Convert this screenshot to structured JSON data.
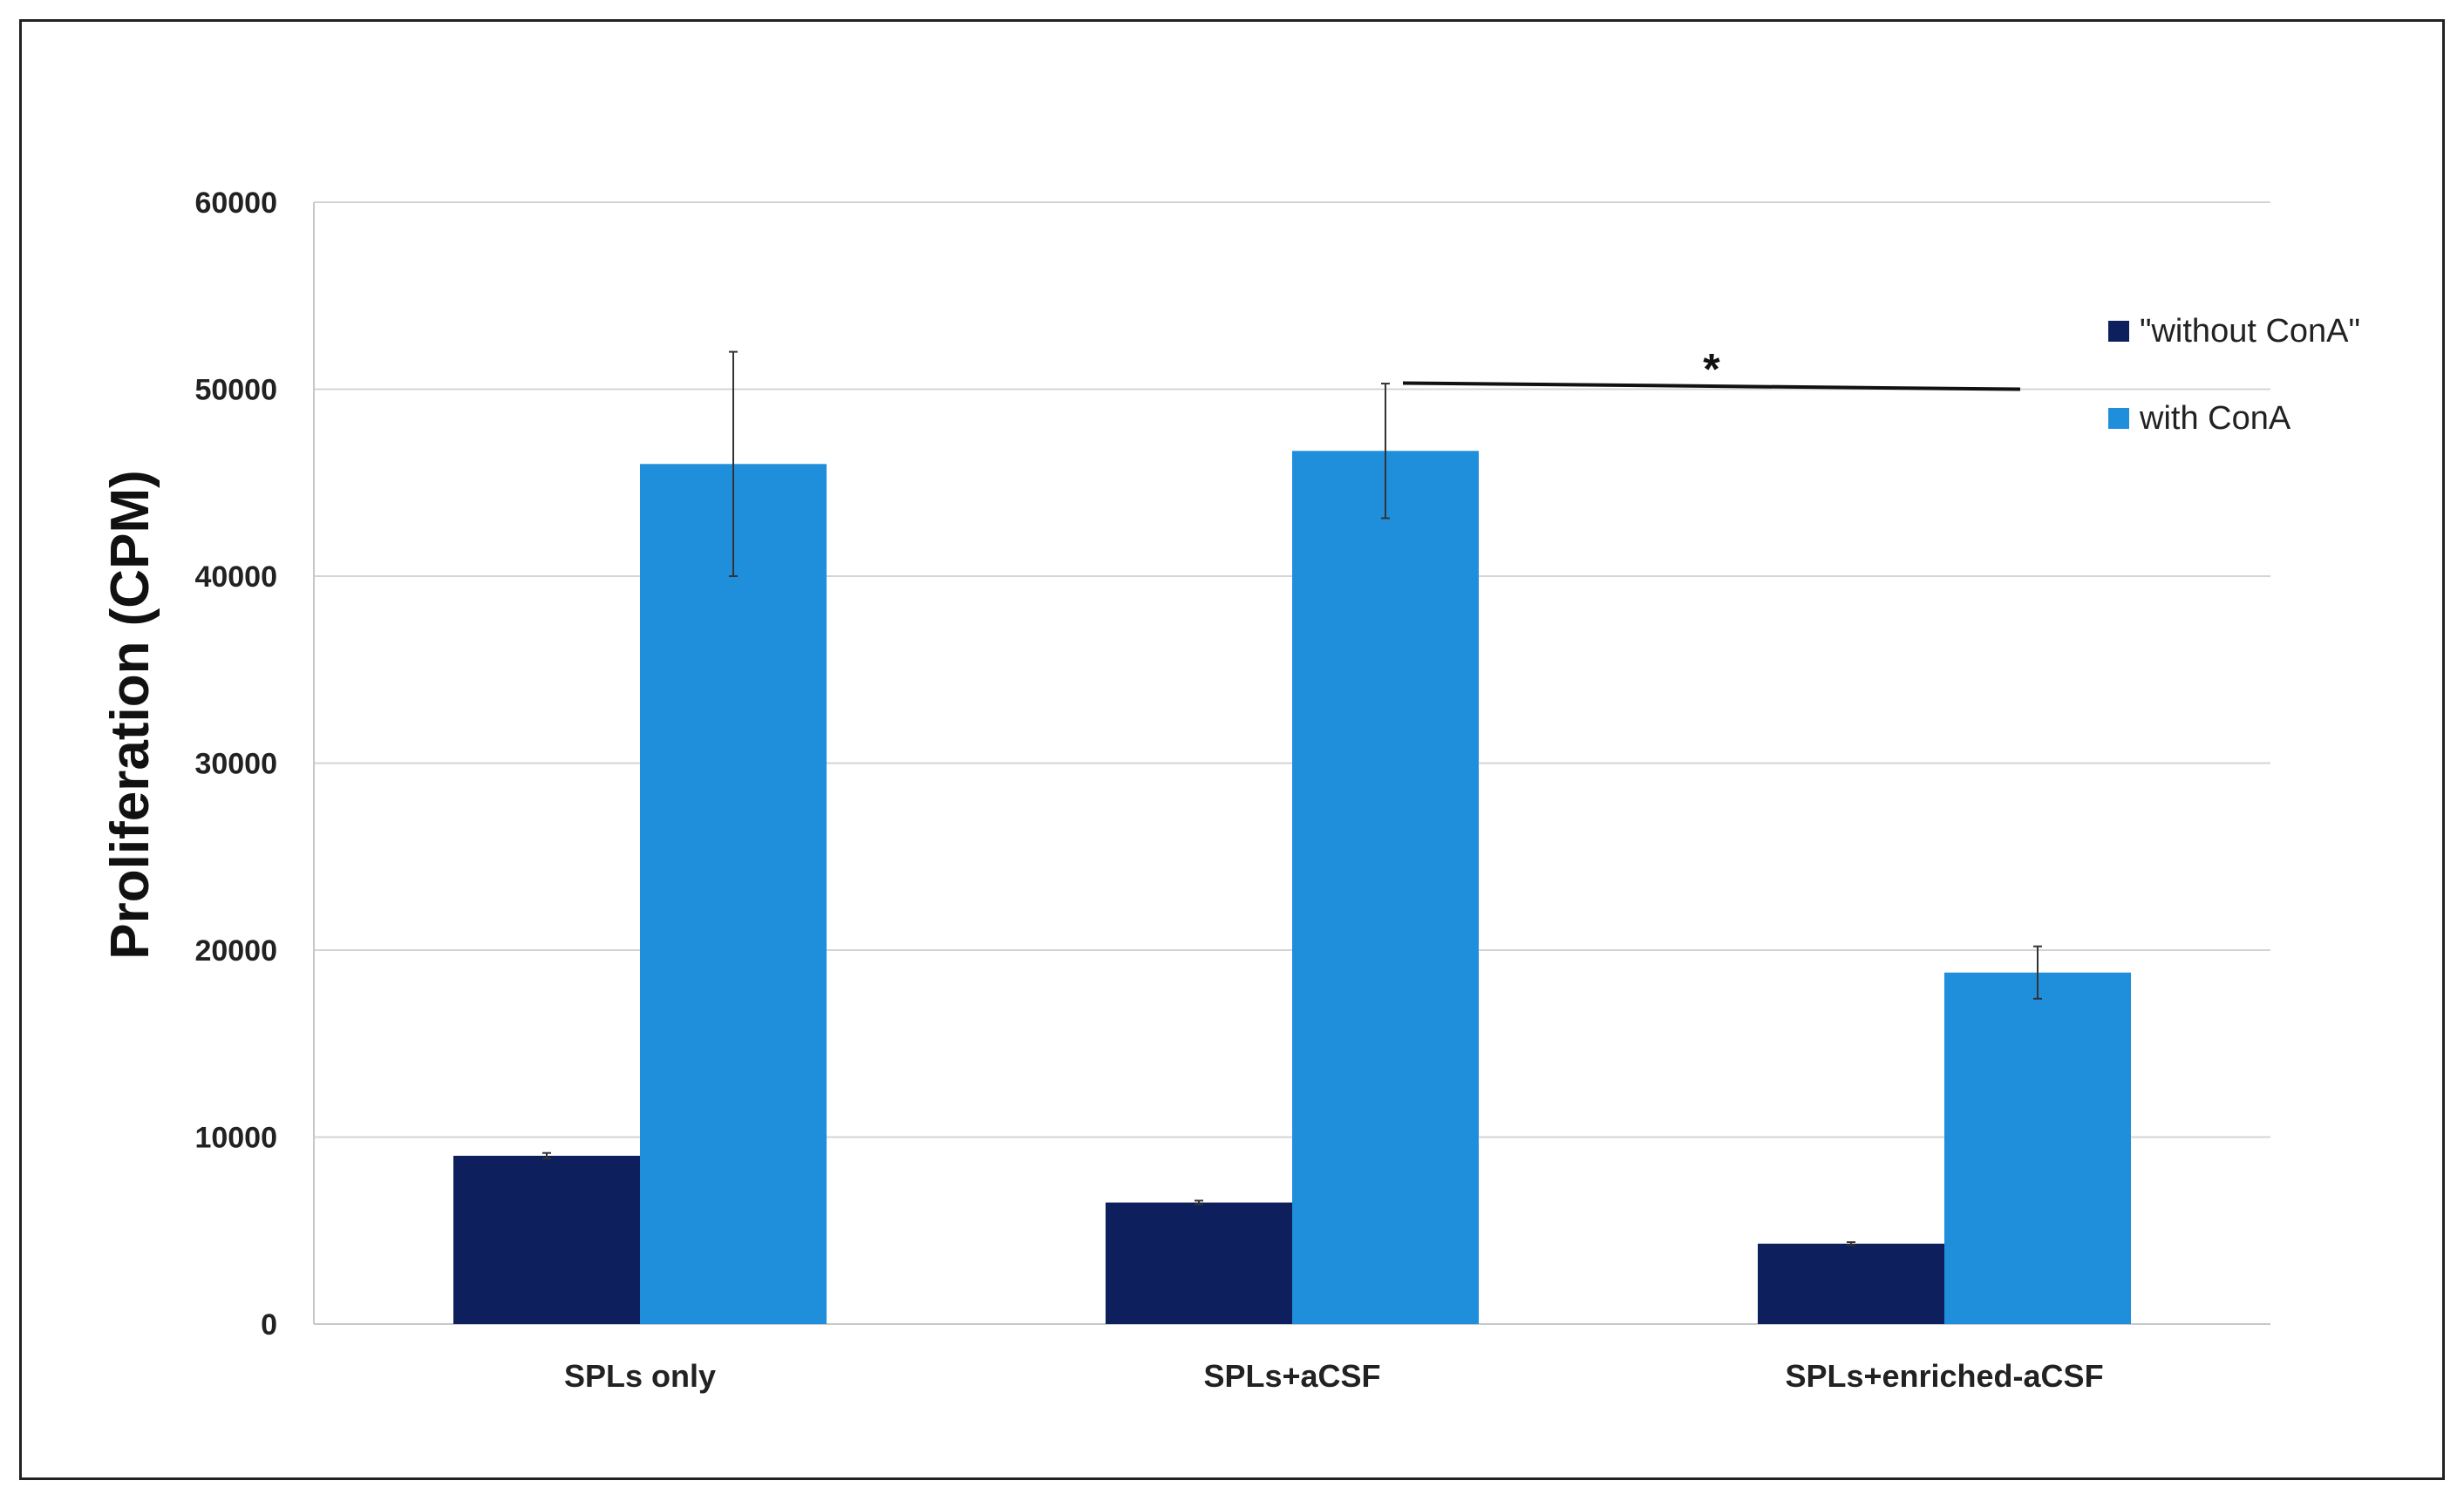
{
  "chart_data": {
    "type": "bar",
    "ylabel": "Proliferation (CPM)",
    "xlabel": "",
    "ylim": [
      0,
      60000
    ],
    "yticks": [
      0,
      10000,
      20000,
      30000,
      40000,
      50000,
      60000
    ],
    "ytick_labels": [
      "0",
      "10000",
      "20000",
      "30000",
      "40000",
      "50000",
      "60000"
    ],
    "grid": true,
    "legend_placement": "right",
    "categories": [
      "SPLs  only",
      "SPLs+aCSF",
      "SPLs+enriched-aCSF"
    ],
    "series": [
      {
        "name": "\"without ConA\"",
        "color": "#0d1f5c",
        "values": [
          9000,
          6500,
          4300
        ],
        "errors": [
          150,
          100,
          80
        ]
      },
      {
        "name": "with ConA",
        "color": "#1f8fdb",
        "values": [
          46000,
          46700,
          18800
        ],
        "errors": [
          6000,
          3600,
          1400
        ]
      }
    ],
    "annotations": [
      {
        "text": "*",
        "from_category": 1,
        "to_category": 2,
        "y": 50000
      }
    ]
  }
}
